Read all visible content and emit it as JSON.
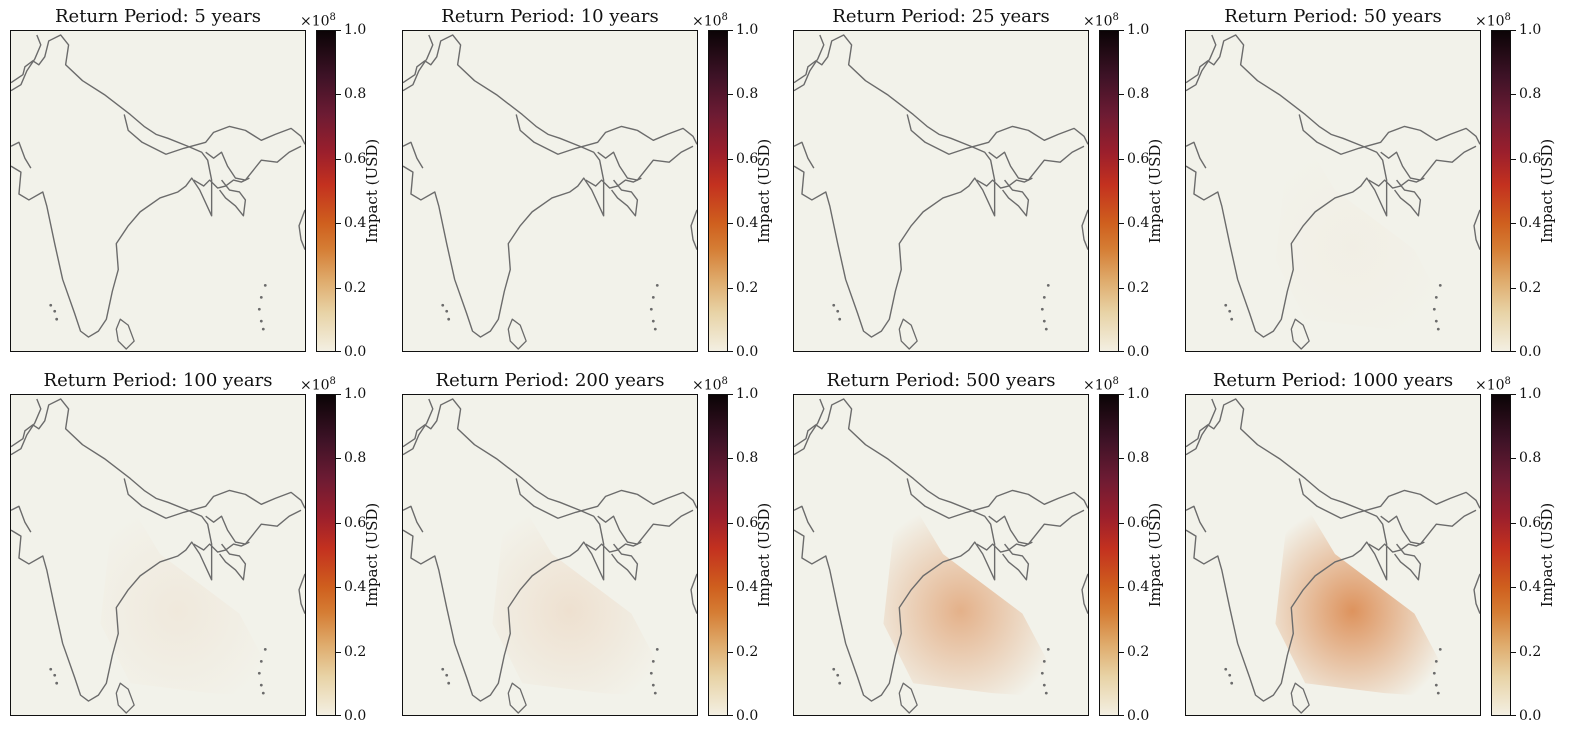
{
  "colorbar": {
    "label": "Impact (USD)",
    "exponent_base": "×10",
    "exponent_power": "8",
    "ticks": [
      "0.0",
      "0.2",
      "0.4",
      "0.6",
      "0.8",
      "1.0"
    ],
    "colors": [
      "#f3efe2",
      "#e8d3a6",
      "#dfab6c",
      "#d57d34",
      "#c3311f",
      "#6c1b33",
      "#0b0406"
    ]
  },
  "map": {
    "land_color": "#f2f2ea",
    "border_color": "#6b6b6b",
    "hotspot_color": "#d87b3a"
  },
  "panels": [
    {
      "title": "Return Period:  5 years",
      "intensity": 0.0
    },
    {
      "title": "Return Period:  10 years",
      "intensity": 0.0
    },
    {
      "title": "Return Period:  25 years",
      "intensity": 0.0
    },
    {
      "title": "Return Period:  50 years",
      "intensity": 0.03
    },
    {
      "title": "Return Period:  100 years",
      "intensity": 0.08
    },
    {
      "title": "Return Period:  200 years",
      "intensity": 0.15
    },
    {
      "title": "Return Period:  500 years",
      "intensity": 0.55
    },
    {
      "title": "Return Period:  1000 years",
      "intensity": 0.8
    }
  ]
}
